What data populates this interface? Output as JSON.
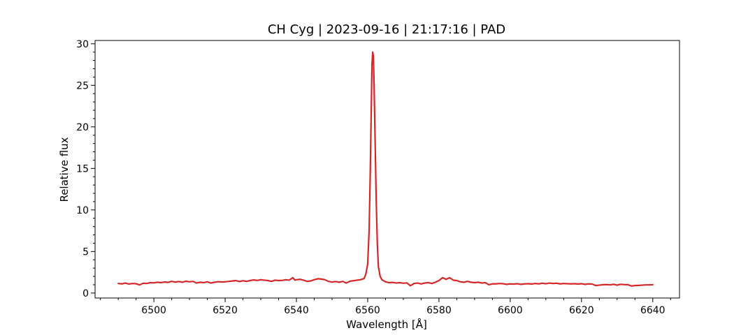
{
  "chart_data": {
    "type": "line",
    "title": "CH Cyg | 2023-09-16 | 21:17:16 | PAD",
    "xlabel": "Wavelength [Å]",
    "ylabel": "Relative flux",
    "xlim": [
      6483.5,
      6647.5
    ],
    "ylim": [
      -0.6,
      30.4
    ],
    "xticks": [
      6500,
      6520,
      6540,
      6560,
      6580,
      6600,
      6620,
      6640
    ],
    "xticklabels": [
      "6500",
      "6520",
      "6540",
      "6560",
      "6580",
      "6600",
      "6620",
      "6640"
    ],
    "yticks": [
      0,
      5,
      10,
      15,
      20,
      25,
      30
    ],
    "yticklabels": [
      "0",
      "5",
      "10",
      "15",
      "20",
      "25",
      "30"
    ],
    "x_minor_step": 5,
    "y_minor_step": 1,
    "grid": false,
    "series": [
      {
        "color": "#d62728",
        "points": [
          [
            6490,
            1.15
          ],
          [
            6491,
            1.1
          ],
          [
            6492,
            1.2
          ],
          [
            6493,
            1.08
          ],
          [
            6494,
            1.15
          ],
          [
            6495,
            1.12
          ],
          [
            6496,
            0.98
          ],
          [
            6497,
            1.18
          ],
          [
            6498,
            1.15
          ],
          [
            6499,
            1.25
          ],
          [
            6500,
            1.22
          ],
          [
            6501,
            1.3
          ],
          [
            6502,
            1.25
          ],
          [
            6503,
            1.33
          ],
          [
            6504,
            1.28
          ],
          [
            6505,
            1.4
          ],
          [
            6506,
            1.32
          ],
          [
            6507,
            1.38
          ],
          [
            6508,
            1.3
          ],
          [
            6509,
            1.42
          ],
          [
            6510,
            1.35
          ],
          [
            6511,
            1.4
          ],
          [
            6512,
            1.2
          ],
          [
            6513,
            1.3
          ],
          [
            6514,
            1.25
          ],
          [
            6515,
            1.35
          ],
          [
            6516,
            1.2
          ],
          [
            6517,
            1.3
          ],
          [
            6518,
            1.36
          ],
          [
            6519,
            1.33
          ],
          [
            6520,
            1.35
          ],
          [
            6521,
            1.4
          ],
          [
            6522,
            1.45
          ],
          [
            6523,
            1.5
          ],
          [
            6524,
            1.38
          ],
          [
            6525,
            1.48
          ],
          [
            6526,
            1.4
          ],
          [
            6527,
            1.5
          ],
          [
            6528,
            1.58
          ],
          [
            6529,
            1.52
          ],
          [
            6530,
            1.6
          ],
          [
            6531,
            1.55
          ],
          [
            6532,
            1.5
          ],
          [
            6533,
            1.4
          ],
          [
            6534,
            1.55
          ],
          [
            6535,
            1.5
          ],
          [
            6536,
            1.52
          ],
          [
            6537,
            1.6
          ],
          [
            6538,
            1.55
          ],
          [
            6539,
            1.85
          ],
          [
            6539.6,
            1.55
          ],
          [
            6540,
            1.6
          ],
          [
            6541,
            1.65
          ],
          [
            6542,
            1.55
          ],
          [
            6543,
            1.4
          ],
          [
            6544,
            1.45
          ],
          [
            6545,
            1.6
          ],
          [
            6546,
            1.72
          ],
          [
            6547,
            1.68
          ],
          [
            6548,
            1.6
          ],
          [
            6549,
            1.4
          ],
          [
            6550,
            1.32
          ],
          [
            6551,
            1.38
          ],
          [
            6552,
            1.3
          ],
          [
            6553,
            1.4
          ],
          [
            6554,
            1.2
          ],
          [
            6555,
            1.42
          ],
          [
            6556,
            1.48
          ],
          [
            6557,
            1.55
          ],
          [
            6558,
            1.6
          ],
          [
            6559,
            1.75
          ],
          [
            6559.5,
            2.3
          ],
          [
            6560,
            3.5
          ],
          [
            6560.4,
            7.5
          ],
          [
            6560.7,
            14
          ],
          [
            6561,
            22
          ],
          [
            6561.2,
            27.5
          ],
          [
            6561.4,
            29.0
          ],
          [
            6561.6,
            28.5
          ],
          [
            6561.8,
            25
          ],
          [
            6562.1,
            18
          ],
          [
            6562.4,
            11
          ],
          [
            6562.7,
            6
          ],
          [
            6563,
            3.2
          ],
          [
            6563.5,
            2.0
          ],
          [
            6564,
            1.6
          ],
          [
            6565,
            1.35
          ],
          [
            6566,
            1.25
          ],
          [
            6567,
            1.28
          ],
          [
            6568,
            1.2
          ],
          [
            6569,
            1.25
          ],
          [
            6570,
            1.18
          ],
          [
            6571,
            1.22
          ],
          [
            6572,
            0.88
          ],
          [
            6573,
            1.15
          ],
          [
            6574,
            1.2
          ],
          [
            6575,
            1.1
          ],
          [
            6576,
            1.2
          ],
          [
            6577,
            1.25
          ],
          [
            6578,
            1.15
          ],
          [
            6579,
            1.3
          ],
          [
            6580,
            1.5
          ],
          [
            6581,
            1.85
          ],
          [
            6582,
            1.65
          ],
          [
            6583,
            1.85
          ],
          [
            6584,
            1.55
          ],
          [
            6585,
            1.5
          ],
          [
            6586,
            1.35
          ],
          [
            6587,
            1.3
          ],
          [
            6588,
            1.4
          ],
          [
            6589,
            1.3
          ],
          [
            6590,
            1.25
          ],
          [
            6591,
            1.3
          ],
          [
            6592,
            1.2
          ],
          [
            6593,
            1.25
          ],
          [
            6594,
            1.0
          ],
          [
            6595,
            1.1
          ],
          [
            6596,
            1.1
          ],
          [
            6597,
            1.15
          ],
          [
            6598,
            1.12
          ],
          [
            6599,
            1.05
          ],
          [
            6600,
            1.1
          ],
          [
            6601,
            1.08
          ],
          [
            6602,
            1.12
          ],
          [
            6603,
            1.05
          ],
          [
            6604,
            1.1
          ],
          [
            6605,
            1.12
          ],
          [
            6606,
            1.08
          ],
          [
            6607,
            1.15
          ],
          [
            6608,
            1.1
          ],
          [
            6609,
            1.18
          ],
          [
            6610,
            1.12
          ],
          [
            6611,
            1.2
          ],
          [
            6612,
            1.15
          ],
          [
            6613,
            1.18
          ],
          [
            6614,
            1.1
          ],
          [
            6615,
            1.15
          ],
          [
            6616,
            1.12
          ],
          [
            6617,
            1.1
          ],
          [
            6618,
            1.12
          ],
          [
            6619,
            1.08
          ],
          [
            6620,
            1.12
          ],
          [
            6621,
            1.05
          ],
          [
            6622,
            1.1
          ],
          [
            6623,
            1.08
          ],
          [
            6624,
            0.9
          ],
          [
            6625,
            0.95
          ],
          [
            6626,
            1.0
          ],
          [
            6627,
            1.02
          ],
          [
            6628,
            0.98
          ],
          [
            6629,
            1.05
          ],
          [
            6630,
            0.95
          ],
          [
            6631,
            1.05
          ],
          [
            6632,
            1.02
          ],
          [
            6633,
            1.0
          ],
          [
            6634,
            0.85
          ],
          [
            6635,
            0.9
          ],
          [
            6636,
            0.92
          ],
          [
            6637,
            0.95
          ],
          [
            6638,
            0.98
          ],
          [
            6639,
            0.98
          ],
          [
            6640,
            1.0
          ]
        ]
      }
    ]
  }
}
